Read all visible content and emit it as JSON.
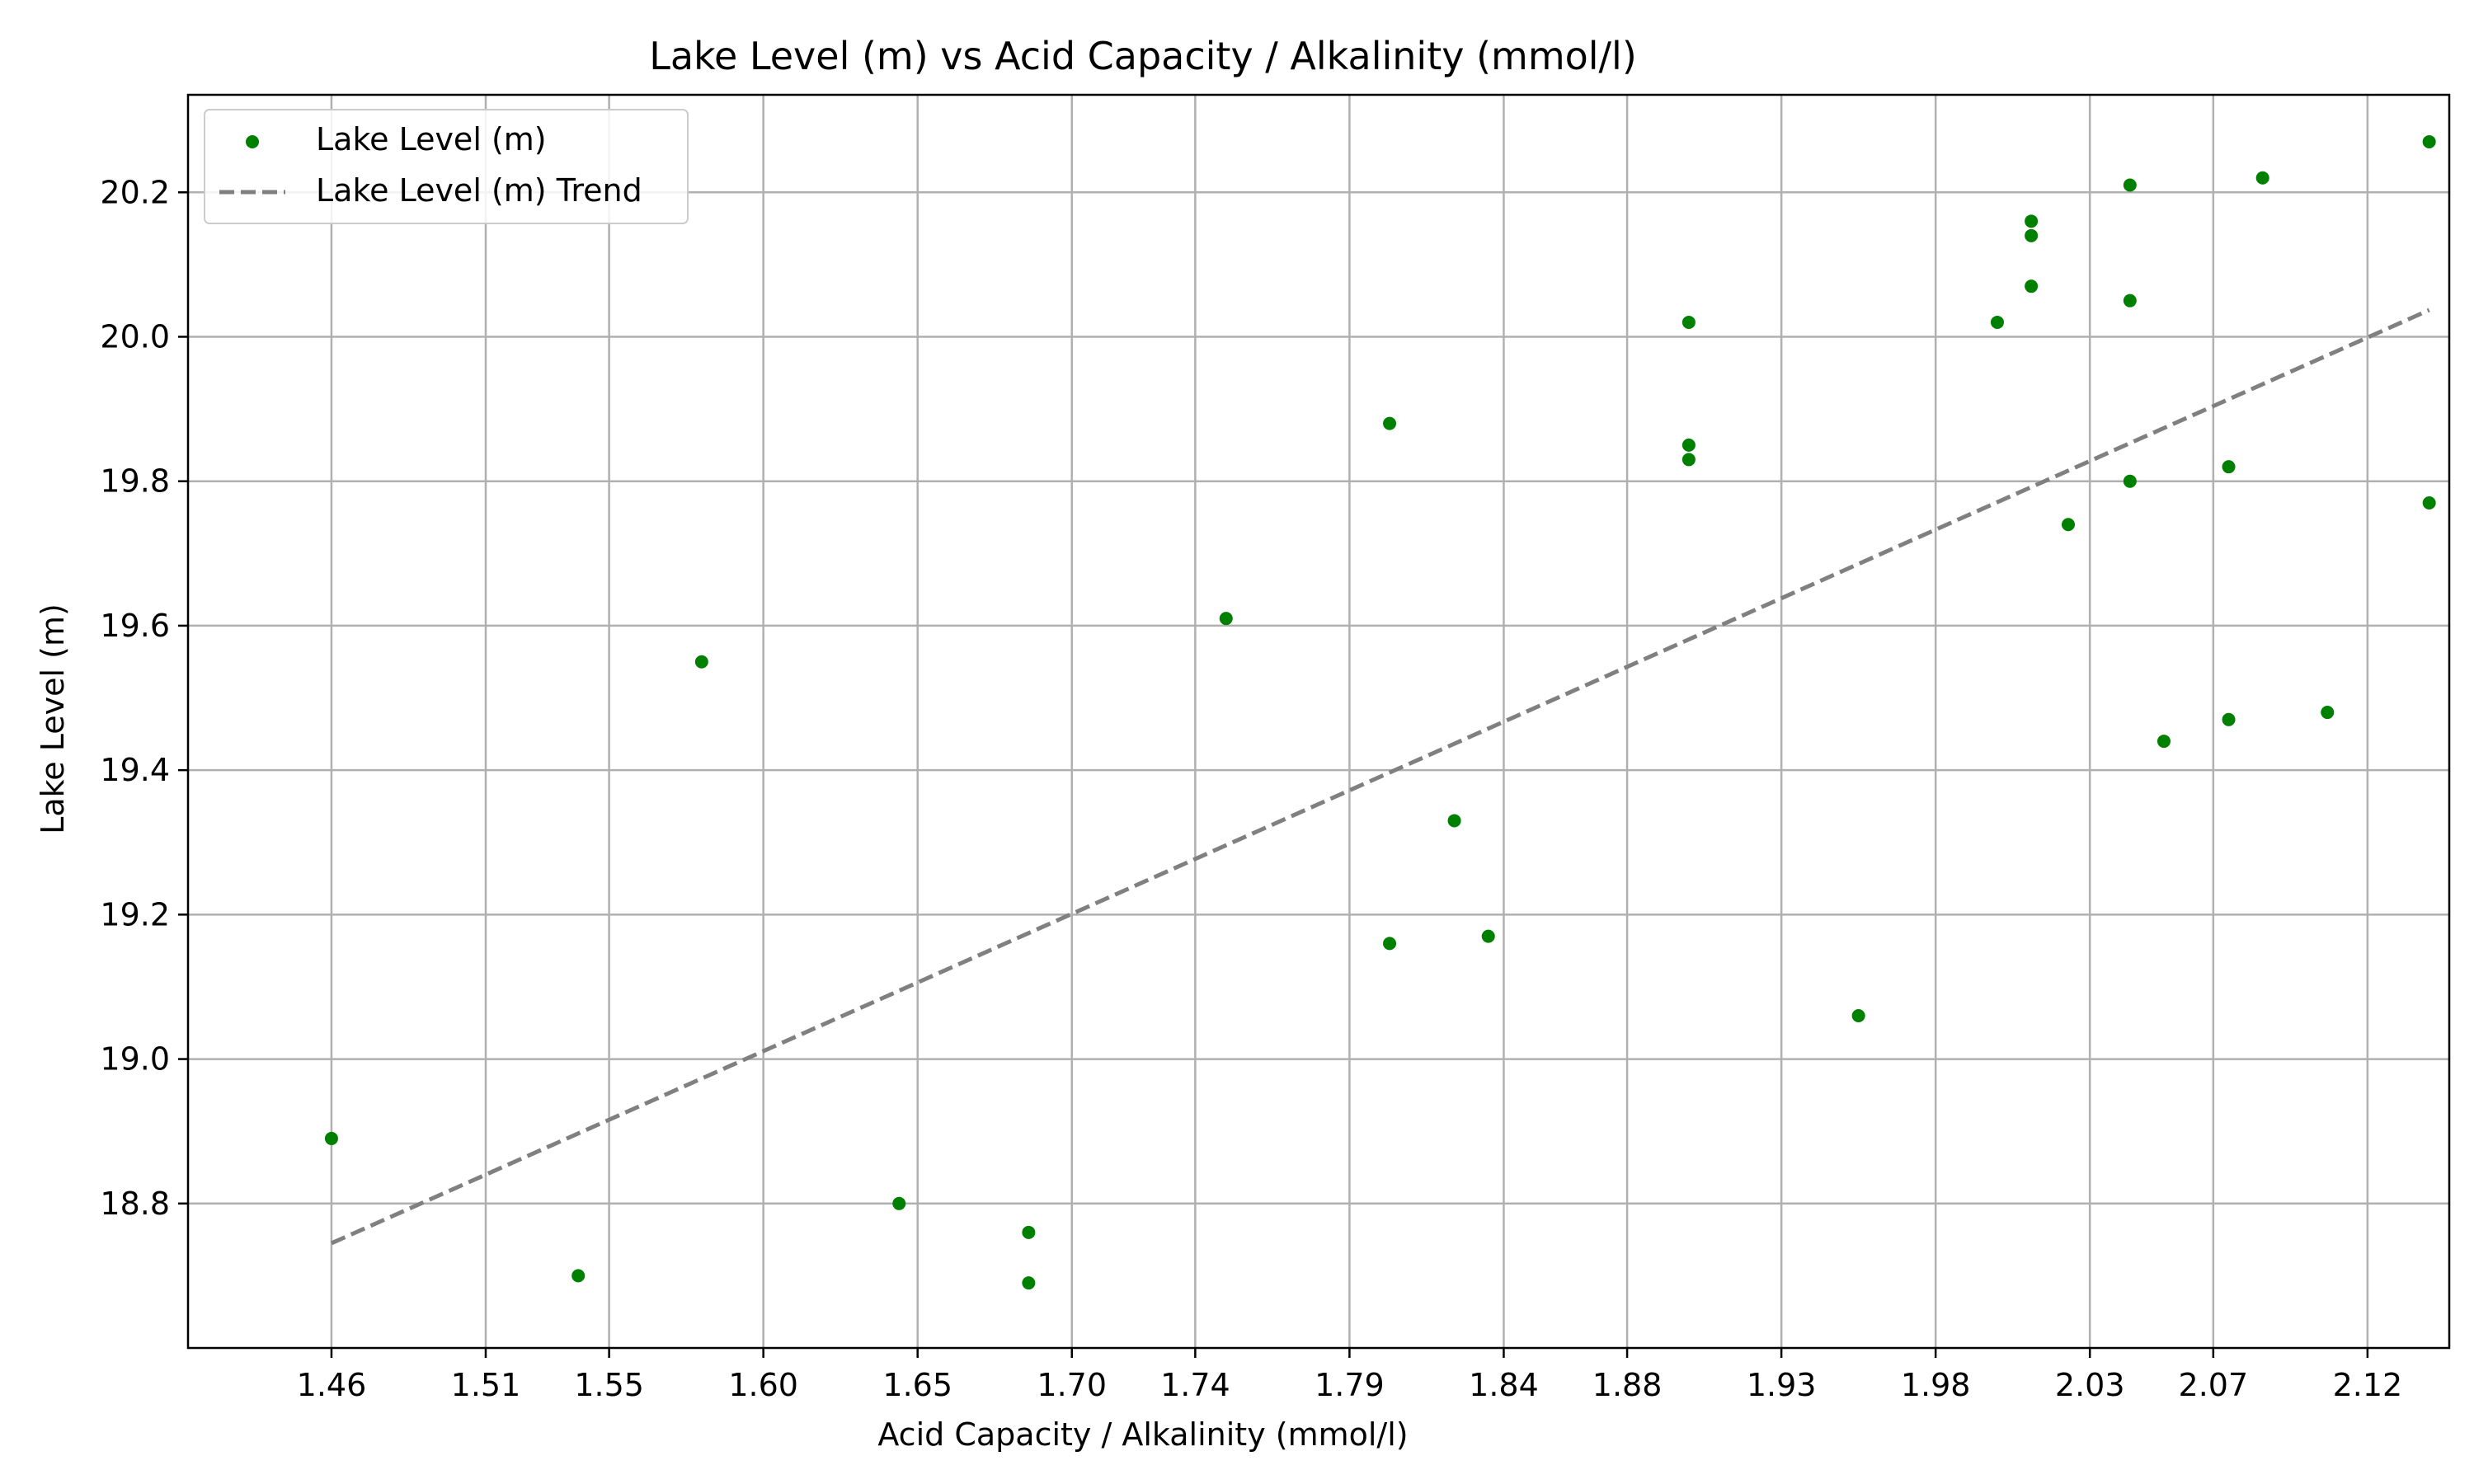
{
  "chart_data": {
    "type": "scatter",
    "title": "Lake Level (m) vs Acid Capacity / Alkalinity (mmol/l)",
    "xlabel": "Acid Capacity / Alkalinity (mmol/l)",
    "ylabel": "Lake Level (m)",
    "xlim": [
      1.4135,
      2.1465
    ],
    "ylim": [
      18.6,
      20.335
    ],
    "x_ticks": [
      "1.46",
      "1.51",
      "1.55",
      "1.60",
      "1.65",
      "1.70",
      "1.74",
      "1.79",
      "1.84",
      "1.88",
      "1.93",
      "1.98",
      "2.03",
      "2.07",
      "2.12"
    ],
    "y_ticks": [
      "18.8",
      "19.0",
      "19.2",
      "19.4",
      "19.6",
      "19.8",
      "20.0",
      "20.2"
    ],
    "grid": true,
    "legend_position": "top-left",
    "series": [
      {
        "name": "Lake Level (m)",
        "kind": "scatter",
        "color": "#008000",
        "points": [
          {
            "x": 1.46,
            "y": 18.89
          },
          {
            "x": 1.54,
            "y": 18.7
          },
          {
            "x": 1.58,
            "y": 19.55
          },
          {
            "x": 1.644,
            "y": 18.8
          },
          {
            "x": 1.686,
            "y": 18.76
          },
          {
            "x": 1.686,
            "y": 18.69
          },
          {
            "x": 1.75,
            "y": 19.61
          },
          {
            "x": 1.803,
            "y": 19.88
          },
          {
            "x": 1.803,
            "y": 19.16
          },
          {
            "x": 1.824,
            "y": 19.33
          },
          {
            "x": 1.835,
            "y": 19.17
          },
          {
            "x": 1.9,
            "y": 20.02
          },
          {
            "x": 1.9,
            "y": 19.85
          },
          {
            "x": 1.9,
            "y": 19.83
          },
          {
            "x": 1.955,
            "y": 19.06
          },
          {
            "x": 2.0,
            "y": 20.02
          },
          {
            "x": 2.011,
            "y": 20.16
          },
          {
            "x": 2.011,
            "y": 20.14
          },
          {
            "x": 2.011,
            "y": 20.07
          },
          {
            "x": 2.023,
            "y": 19.74
          },
          {
            "x": 2.043,
            "y": 20.21
          },
          {
            "x": 2.043,
            "y": 20.05
          },
          {
            "x": 2.043,
            "y": 19.8
          },
          {
            "x": 2.054,
            "y": 19.44
          },
          {
            "x": 2.075,
            "y": 19.82
          },
          {
            "x": 2.075,
            "y": 19.47
          },
          {
            "x": 2.086,
            "y": 20.22
          },
          {
            "x": 2.107,
            "y": 19.48
          },
          {
            "x": 2.14,
            "y": 20.27
          },
          {
            "x": 2.14,
            "y": 19.77
          }
        ]
      },
      {
        "name": "Lake Level (m) Trend",
        "kind": "line",
        "style": "dashed",
        "color": "#808080",
        "points": [
          {
            "x": 1.46,
            "y": 18.745
          },
          {
            "x": 2.14,
            "y": 20.037
          }
        ]
      }
    ]
  }
}
